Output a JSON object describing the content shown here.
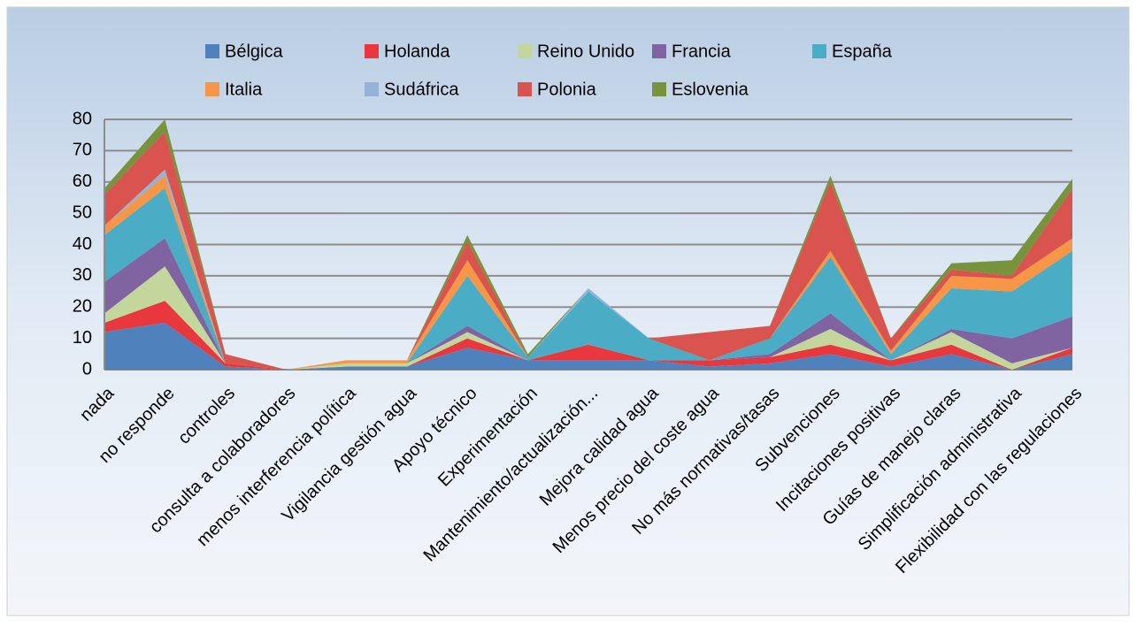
{
  "chart_data": {
    "type": "stacked_area",
    "categories": [
      "nada",
      "no responde",
      "controles",
      "consulta a colaboradores",
      "menos interferencia política",
      "Vigilancia gestión agua",
      "Apoyo técnico",
      "Experimentación",
      "Mantenimiento/actualización...",
      "Mejora calidad agua",
      "Menos precio del coste agua",
      "No más normativas/tasas",
      "Subvenciones",
      "Incitaciones positivas",
      "Guías de manejo claras",
      "Simplificación administrativa",
      "Flexibilidad con las regulaciones"
    ],
    "series": [
      {
        "name": "Bélgica",
        "color": "#4f81bd",
        "values": [
          12,
          15,
          1,
          0,
          1,
          1,
          7,
          3,
          3,
          3,
          1,
          2,
          5,
          1,
          5,
          0,
          5
        ]
      },
      {
        "name": "Holanda",
        "color": "#e8383d",
        "values": [
          3,
          7,
          1,
          0,
          0,
          0,
          3,
          0,
          5,
          0,
          2,
          2,
          3,
          2,
          3,
          0,
          2
        ]
      },
      {
        "name": "Reino Unido",
        "color": "#c3d69b",
        "values": [
          3,
          11,
          0,
          0,
          1,
          1,
          2,
          0,
          0,
          0,
          0,
          0,
          5,
          0,
          4,
          2,
          0
        ]
      },
      {
        "name": "Francia",
        "color": "#8064a2",
        "values": [
          10,
          9,
          0,
          0,
          0,
          0,
          2,
          0,
          0,
          0,
          0,
          1,
          5,
          0,
          1,
          8,
          10
        ]
      },
      {
        "name": "España",
        "color": "#4bacc6",
        "values": [
          15,
          16,
          0,
          0,
          0,
          0,
          16,
          1,
          17,
          7,
          0,
          5,
          18,
          2,
          13,
          15,
          21
        ]
      },
      {
        "name": "Italia",
        "color": "#f79646",
        "values": [
          3,
          4,
          0,
          0,
          1,
          1,
          5,
          0,
          0,
          0,
          0,
          0,
          2,
          1,
          4,
          4,
          4
        ]
      },
      {
        "name": "Sudáfrica",
        "color": "#95b3d7",
        "values": [
          0,
          2,
          0,
          0,
          0,
          0,
          0,
          0,
          1,
          0,
          0,
          0,
          0,
          0,
          0,
          0,
          0
        ]
      },
      {
        "name": "Polonia",
        "color": "#d9534f",
        "values": [
          10,
          12,
          3,
          0,
          0,
          0,
          6,
          0,
          0,
          0,
          9,
          4,
          22,
          4,
          2,
          1,
          16
        ]
      },
      {
        "name": "Eslovenia",
        "color": "#77933c",
        "values": [
          2,
          4,
          0,
          0,
          0,
          0,
          2,
          1,
          0,
          0,
          0,
          0,
          2,
          0,
          2,
          5,
          3
        ]
      }
    ],
    "ylim": [
      0,
      80
    ],
    "yticks": [
      0,
      10,
      20,
      30,
      40,
      50,
      60,
      70,
      80
    ],
    "grid": true,
    "legend": "top"
  }
}
